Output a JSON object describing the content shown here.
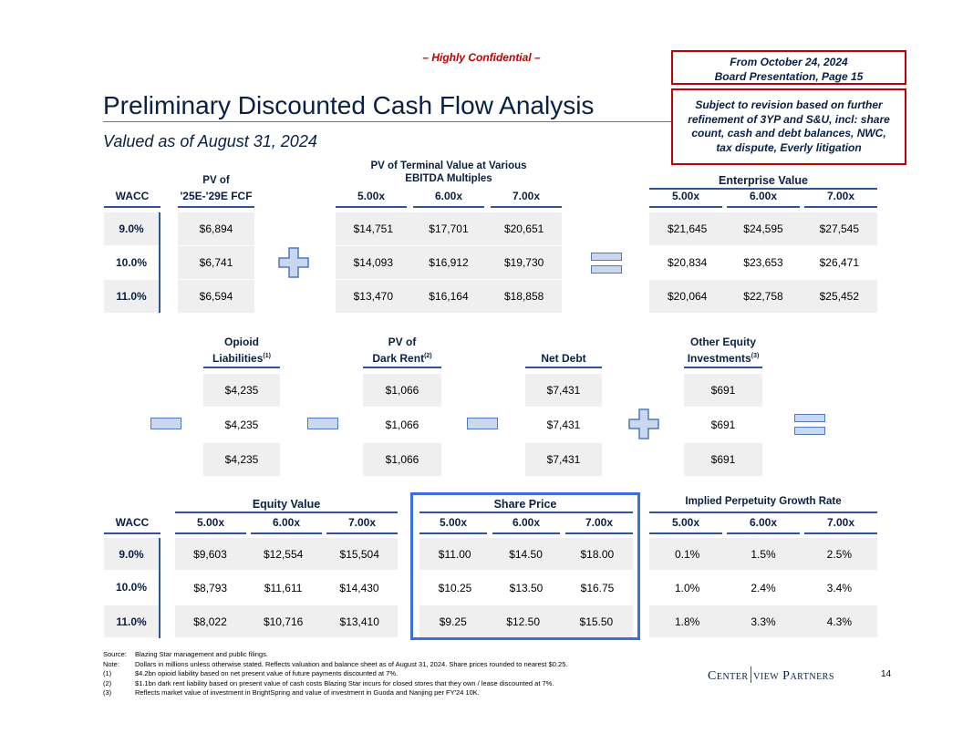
{
  "confidential": "– Highly Confidential –",
  "title": "Preliminary Discounted Cash Flow Analysis",
  "subtitle": "Valued as of August 31, 2024",
  "box1": [
    "From October 24, 2024",
    "Board Presentation, Page 15"
  ],
  "box2": [
    "Subject to revision based on further",
    "refinement of 3YP and S&U, incl: share",
    "count, cash and debt balances, NWC,",
    "tax dispute, Everly litigation"
  ],
  "wacc_label": "WACC",
  "wacc": [
    "9.0%",
    "10.0%",
    "11.0%"
  ],
  "multiples": [
    "5.00x",
    "6.00x",
    "7.00x"
  ],
  "pv_fcf": {
    "header": [
      "PV of",
      "'25E-'29E FCF"
    ],
    "values": [
      "$6,894",
      "$6,741",
      "$6,594"
    ]
  },
  "pv_tv": {
    "header": [
      "PV of Terminal Value at Various",
      "EBITDA Multiples"
    ],
    "rows": [
      [
        "$14,751",
        "$17,701",
        "$20,651"
      ],
      [
        "$14,093",
        "$16,912",
        "$19,730"
      ],
      [
        "$13,470",
        "$16,164",
        "$18,858"
      ]
    ]
  },
  "ev": {
    "header": "Enterprise Value",
    "rows": [
      [
        "$21,645",
        "$24,595",
        "$27,545"
      ],
      [
        "$20,834",
        "$23,653",
        "$26,471"
      ],
      [
        "$20,064",
        "$22,758",
        "$25,452"
      ]
    ]
  },
  "opioid": {
    "h1": "Opioid",
    "h2": "Liabilities",
    "sup": "(1)",
    "values": [
      "$4,235",
      "$4,235",
      "$4,235"
    ]
  },
  "dark_rent": {
    "h1": "PV of",
    "h2": "Dark Rent",
    "sup": "(2)",
    "values": [
      "$1,066",
      "$1,066",
      "$1,066"
    ]
  },
  "net_debt": {
    "h2": "Net Debt",
    "values": [
      "$7,431",
      "$7,431",
      "$7,431"
    ]
  },
  "other_eq": {
    "h1": "Other Equity",
    "h2": "Investments",
    "sup": "(3)",
    "values": [
      "$691",
      "$691",
      "$691"
    ]
  },
  "equity": {
    "header": "Equity Value",
    "rows": [
      [
        "$9,603",
        "$12,554",
        "$15,504"
      ],
      [
        "$8,793",
        "$11,611",
        "$14,430"
      ],
      [
        "$8,022",
        "$10,716",
        "$13,410"
      ]
    ]
  },
  "share": {
    "header": "Share Price",
    "rows": [
      [
        "$11.00",
        "$14.50",
        "$18.00"
      ],
      [
        "$10.25",
        "$13.50",
        "$16.75"
      ],
      [
        "$9.25",
        "$12.50",
        "$15.50"
      ]
    ]
  },
  "growth": {
    "header": "Implied Perpetuity Growth Rate",
    "rows": [
      [
        "0.1%",
        "1.5%",
        "2.5%"
      ],
      [
        "1.0%",
        "2.4%",
        "3.4%"
      ],
      [
        "1.8%",
        "3.3%",
        "4.3%"
      ]
    ]
  },
  "footnotes": [
    [
      "Source:",
      "Blazing Star management and public filings."
    ],
    [
      "Note:",
      "Dollars in millions unless otherwise stated. Reflects valuation and balance sheet as of August 31, 2024. Share prices rounded to nearest $0.25."
    ],
    [
      "(1)",
      "$4.2bn opioid liability based on net present value of future payments discounted at 7%."
    ],
    [
      "(2)",
      "$1.1bn dark rent liability based on present value of cash costs Blazing Star incurs for closed stores that they own / lease discounted at 7%."
    ],
    [
      "(3)",
      "Reflects market value of investment in BrightSpring and value of investment in Guoda and Nanjing per FY'24 10K."
    ]
  ],
  "logo": [
    "Center",
    "view Partners"
  ],
  "page_number": "14",
  "colors": {
    "navy": "#0a1f44",
    "red": "#c00000",
    "accent": "#2f5597",
    "cell": "#efefef"
  }
}
